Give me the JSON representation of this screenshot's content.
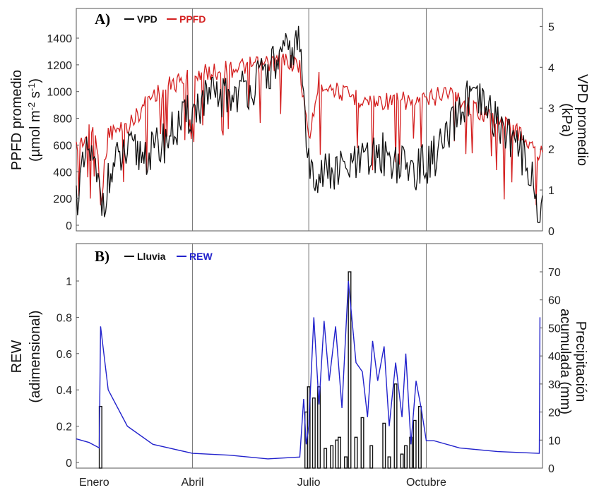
{
  "chart_data": [
    {
      "panel_label": "A)",
      "type": "line",
      "x_tick_positions_month": [
        "Enero",
        "Abril",
        "Julio",
        "Octubre"
      ],
      "x_tick_index": [
        14,
        91,
        182,
        274
      ],
      "ylabel_left_line1": "PPFD promedio",
      "ylabel_left_line2": "(µmol m-2 s-1)",
      "ylabel_right_line1": "VPD promedio",
      "ylabel_right_line2": "(kPa)",
      "ylim_left": [
        0,
        1400
      ],
      "yticks_left": [
        0,
        200,
        400,
        600,
        800,
        1000,
        1200,
        1400
      ],
      "ylim_right": [
        0,
        5
      ],
      "yticks_right": [
        0,
        1,
        2,
        3,
        4,
        5
      ],
      "legend": [
        {
          "label": "VPD",
          "color": "#111111"
        },
        {
          "label": "PPFD",
          "color": "#d42020"
        }
      ],
      "legend_position": "top-left",
      "series_envelope": {
        "PPFD": {
          "x": [
            0,
            14,
            20,
            25,
            40,
            60,
            91,
            110,
            125,
            150,
            165,
            175,
            182,
            190,
            210,
            230,
            250,
            274,
            290,
            310,
            330,
            345,
            362
          ],
          "y": [
            650,
            800,
            320,
            760,
            800,
            1050,
            1200,
            1220,
            1250,
            1280,
            1310,
            1250,
            700,
            1150,
            1050,
            1000,
            1000,
            1000,
            1080,
            950,
            850,
            780,
            600
          ]
        },
        "VPD": {
          "x": [
            0,
            10,
            20,
            30,
            40,
            60,
            75,
            91,
            100,
            120,
            140,
            160,
            175,
            182,
            200,
            220,
            240,
            260,
            274,
            290,
            305,
            320,
            340,
            355,
            362
          ],
          "y": [
            0.8,
            2.0,
            0.7,
            1.6,
            1.9,
            1.9,
            2.4,
            2.9,
            3.2,
            3.3,
            3.6,
            4.2,
            4.6,
            1.5,
            1.4,
            1.6,
            1.9,
            1.5,
            1.6,
            2.2,
            3.2,
            3.0,
            2.3,
            1.6,
            0.4
          ]
        }
      },
      "vertical_markers_index": [
        91,
        182,
        274
      ]
    },
    {
      "panel_label": "B)",
      "type": "line+bar",
      "x_tick_labels": [
        "Enero",
        "Abril",
        "Julio",
        "Octubre"
      ],
      "x_tick_index": [
        14,
        91,
        182,
        274
      ],
      "ylabel_left_line1": "REW",
      "ylabel_left_line2": "(adimensional)",
      "ylabel_right_line1": "Precipitación",
      "ylabel_right_line2": "acumulada  (mm)",
      "ylim_left": [
        0,
        1.1
      ],
      "yticks_left": [
        0,
        0.2,
        0.4,
        0.6,
        0.8,
        1
      ],
      "ylim_right": [
        0,
        75
      ],
      "yticks_right": [
        0,
        10,
        20,
        30,
        40,
        50,
        60,
        70
      ],
      "legend": [
        {
          "label": "Lluvia",
          "color": "#111111"
        },
        {
          "label": "REW",
          "color": "#2222cc"
        }
      ],
      "legend_position": "top-left",
      "REW": {
        "x": [
          0,
          10,
          18,
          19,
          25,
          40,
          60,
          91,
          120,
          150,
          175,
          178,
          180,
          182,
          186,
          190,
          194,
          198,
          203,
          208,
          213,
          219,
          224,
          228,
          232,
          236,
          241,
          245,
          250,
          255,
          258,
          262,
          266,
          270,
          274,
          280,
          300,
          330,
          362
        ],
        "y": [
          0.13,
          0.11,
          0.08,
          0.75,
          0.4,
          0.2,
          0.1,
          0.05,
          0.04,
          0.02,
          0.03,
          0.35,
          0.1,
          0.2,
          0.8,
          0.32,
          0.78,
          0.45,
          0.75,
          0.3,
          1.0,
          0.55,
          0.5,
          0.25,
          0.67,
          0.45,
          0.64,
          0.2,
          0.55,
          0.25,
          0.6,
          0.1,
          0.45,
          0.3,
          0.12,
          0.12,
          0.08,
          0.06,
          0.05
        ]
      },
      "Lluvia_mm": {
        "x": [
          19,
          180,
          182,
          186,
          190,
          195,
          200,
          204,
          206,
          211,
          214,
          219,
          224,
          231,
          241,
          245,
          250,
          255,
          258,
          262,
          265,
          269
        ],
        "y": [
          22,
          20,
          29,
          25,
          29,
          7,
          8,
          10,
          11,
          4,
          70,
          11,
          18,
          8,
          16,
          4,
          30,
          5,
          8,
          11,
          17,
          22
        ]
      },
      "vertical_markers_index": [
        91,
        182,
        274
      ]
    }
  ]
}
